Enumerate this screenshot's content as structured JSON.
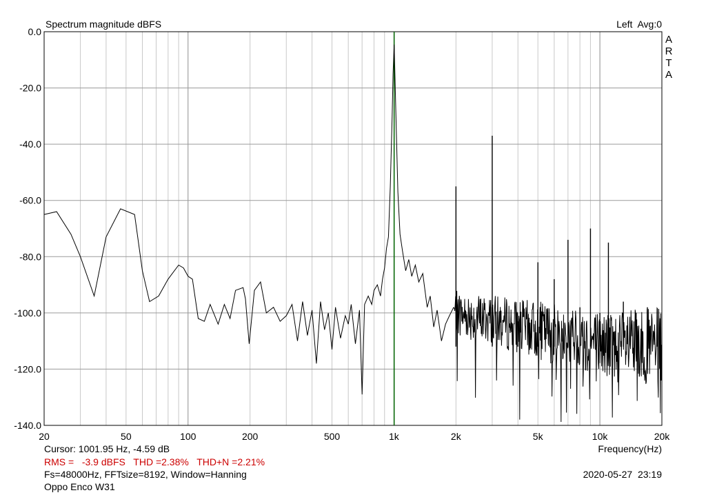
{
  "chart_data": {
    "type": "line",
    "title": "Spectrum magnitude dBFS",
    "channel_label": "Left  Avg:0",
    "brand_letters": [
      "A",
      "R",
      "T",
      "A"
    ],
    "xlabel": "Frequency(Hz)",
    "ylabel": "",
    "x_scale": "log",
    "xlim": [
      20,
      20000
    ],
    "ylim": [
      -140,
      0
    ],
    "grid": true,
    "x_ticks": [
      20,
      50,
      100,
      200,
      500,
      1000,
      2000,
      5000,
      10000,
      20000
    ],
    "x_tick_labels": [
      "20",
      "50",
      "100",
      "200",
      "500",
      "1k",
      "2k",
      "5k",
      "10k",
      "20k"
    ],
    "y_ticks": [
      0,
      -20,
      -40,
      -60,
      -80,
      -100,
      -120,
      -140
    ],
    "y_tick_labels": [
      "0.0",
      "-20.0",
      "-40.0",
      "-60.0",
      "-80.0",
      "-100.0",
      "-120.0",
      "-140.0"
    ],
    "cursor_frequency": 1001.95,
    "cursor_color": "#006400",
    "line_color": "#000000",
    "harmonics": [
      {
        "f": 2000,
        "db": -55
      },
      {
        "f": 3000,
        "db": -37
      },
      {
        "f": 4000,
        "db": -103
      },
      {
        "f": 5000,
        "db": -82
      },
      {
        "f": 6000,
        "db": -88
      },
      {
        "f": 7000,
        "db": -74
      },
      {
        "f": 8000,
        "db": -98
      },
      {
        "f": 9000,
        "db": -70
      },
      {
        "f": 10000,
        "db": -100
      },
      {
        "f": 11000,
        "db": -75
      },
      {
        "f": 13000,
        "db": -96
      },
      {
        "f": 15000,
        "db": -100
      },
      {
        "f": 17000,
        "db": -98
      },
      {
        "f": 19000,
        "db": -104
      }
    ],
    "series": [
      {
        "points": [
          [
            20,
            -65
          ],
          [
            23,
            -64
          ],
          [
            27,
            -72
          ],
          [
            30,
            -80
          ],
          [
            35,
            -94
          ],
          [
            40,
            -73
          ],
          [
            47,
            -63
          ],
          [
            55,
            -65
          ],
          [
            60,
            -85
          ],
          [
            65,
            -96
          ],
          [
            72,
            -94
          ],
          [
            80,
            -88
          ],
          [
            90,
            -83
          ],
          [
            95,
            -84
          ],
          [
            100,
            -87
          ],
          [
            105,
            -88
          ],
          [
            112,
            -102
          ],
          [
            120,
            -103
          ],
          [
            128,
            -97
          ],
          [
            140,
            -104
          ],
          [
            150,
            -97
          ],
          [
            160,
            -102
          ],
          [
            170,
            -92
          ],
          [
            185,
            -91
          ],
          [
            190,
            -95
          ],
          [
            198,
            -111
          ],
          [
            210,
            -92
          ],
          [
            225,
            -89
          ],
          [
            240,
            -100
          ],
          [
            260,
            -98
          ],
          [
            280,
            -103
          ],
          [
            300,
            -101
          ],
          [
            320,
            -97
          ],
          [
            340,
            -110
          ],
          [
            360,
            -96
          ],
          [
            380,
            -108
          ],
          [
            400,
            -99
          ],
          [
            420,
            -118
          ],
          [
            440,
            -96
          ],
          [
            460,
            -106
          ],
          [
            480,
            -100
          ],
          [
            500,
            -113
          ],
          [
            520,
            -98
          ],
          [
            550,
            -109
          ],
          [
            580,
            -101
          ],
          [
            600,
            -104
          ],
          [
            620,
            -97
          ],
          [
            650,
            -111
          ],
          [
            680,
            -99
          ],
          [
            700,
            -129
          ],
          [
            720,
            -97
          ],
          [
            750,
            -94
          ],
          [
            780,
            -97
          ],
          [
            800,
            -92
          ],
          [
            830,
            -90
          ],
          [
            860,
            -94
          ],
          [
            880,
            -88
          ],
          [
            900,
            -84
          ],
          [
            920,
            -77
          ],
          [
            940,
            -73
          ],
          [
            960,
            -55
          ],
          [
            980,
            -30
          ],
          [
            990,
            -15
          ],
          [
            1001.95,
            -4.59
          ],
          [
            1012,
            -17
          ],
          [
            1025,
            -33
          ],
          [
            1045,
            -57
          ],
          [
            1070,
            -72
          ],
          [
            1100,
            -78
          ],
          [
            1140,
            -85
          ],
          [
            1180,
            -81
          ],
          [
            1220,
            -87
          ],
          [
            1270,
            -83
          ],
          [
            1320,
            -89
          ],
          [
            1380,
            -86
          ],
          [
            1450,
            -98
          ],
          [
            1500,
            -94
          ],
          [
            1560,
            -105
          ],
          [
            1620,
            -99
          ],
          [
            1700,
            -110
          ],
          [
            1780,
            -104
          ],
          [
            1860,
            -101
          ],
          [
            1950,
            -98
          ]
        ]
      }
    ]
  },
  "info": {
    "cursor_line": "Cursor: 1001.95 Hz, -4.59 dB",
    "rms_line": "RMS =   -3.9 dBFS   THD =2.38%   THD+N =2.21%",
    "fft_line": "Fs=48000Hz, FFTsize=8192, Window=Hanning",
    "device_line": "Oppo Enco W31",
    "timestamp": "2020-05-27  23:19"
  }
}
